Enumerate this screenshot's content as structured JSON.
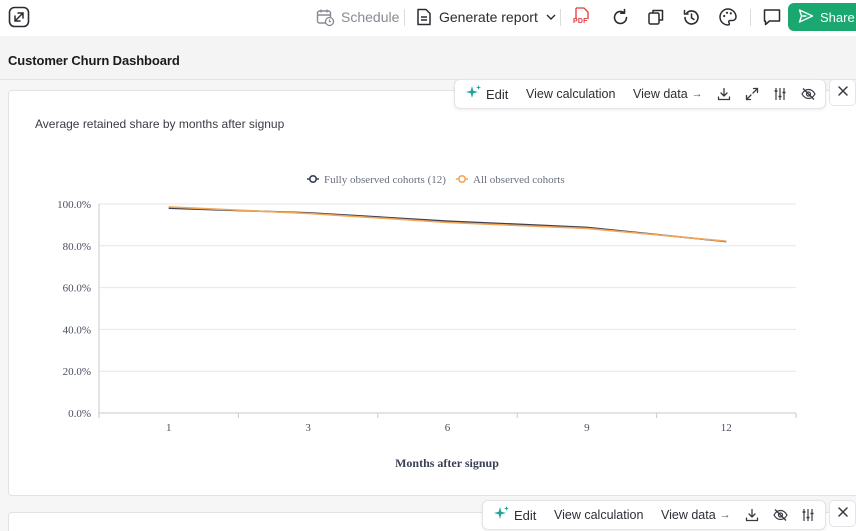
{
  "toolbar": {
    "schedule_label": "Schedule",
    "generate_report_label": "Generate report",
    "pdf_icon_text": "PDF",
    "share_label": "Share"
  },
  "dashboard": {
    "title": "Customer Churn Dashboard"
  },
  "widget_toolbar": {
    "edit_label": "Edit",
    "view_calculation_label": "View calculation",
    "view_data_label": "View data",
    "arrow": "→"
  },
  "colors": {
    "share_green": "#1aa870",
    "series_dark": "#3a3f52",
    "series_orange": "#f2a65a",
    "sparkle_teal": "#1ea59a"
  },
  "chart_data": {
    "type": "line",
    "title": "Average retained share by months after signup",
    "xlabel": "Months after signup",
    "ylabel": "",
    "x": [
      1,
      3,
      6,
      9,
      12
    ],
    "yticks": [
      "0.0%",
      "20.0%",
      "40.0%",
      "60.0%",
      "80.0%",
      "100.0%"
    ],
    "ylim": [
      0,
      100
    ],
    "legend_position": "top-center",
    "grid": true,
    "series": [
      {
        "name": "Fully observed cohorts (12)",
        "color": "#3a3f52",
        "values": [
          98.0,
          95.8,
          91.8,
          88.8,
          82.0
        ]
      },
      {
        "name": "All observed cohorts",
        "color": "#f2a65a",
        "values": [
          98.6,
          95.5,
          91.2,
          88.3,
          82.2
        ]
      }
    ]
  }
}
